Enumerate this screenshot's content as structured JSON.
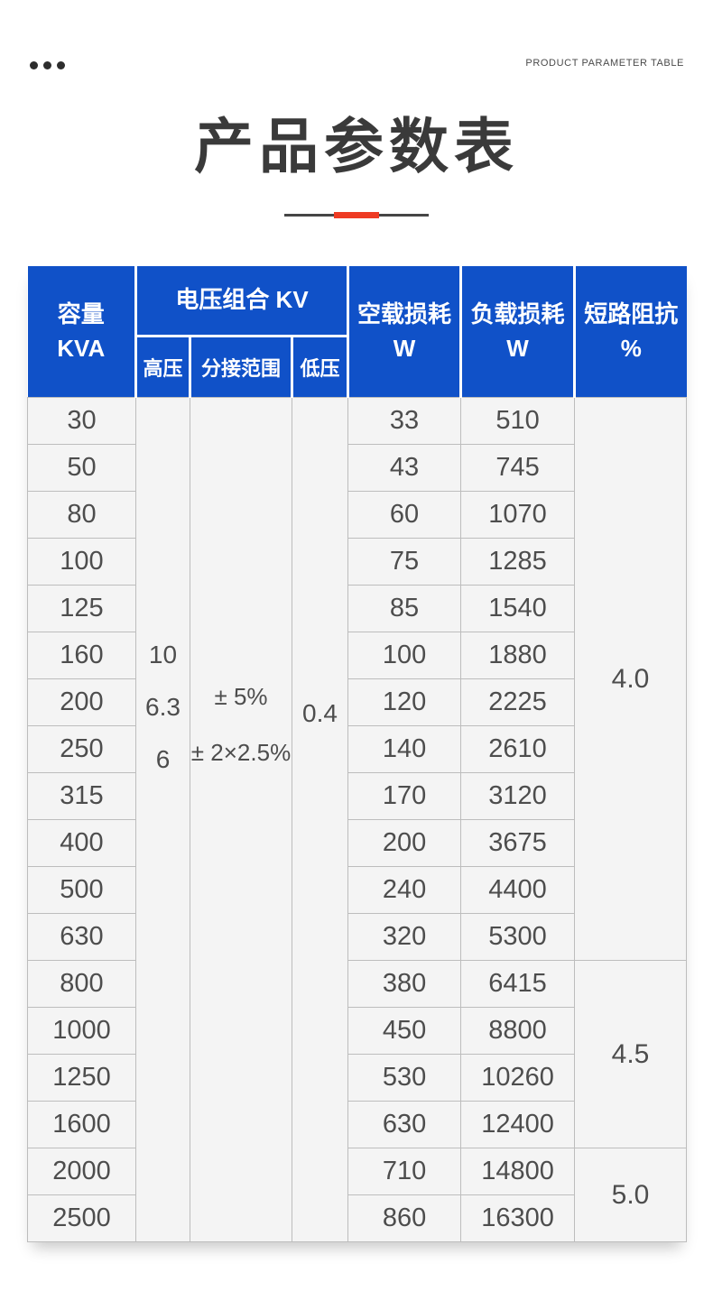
{
  "header": {
    "caption": "PRODUCT PARAMETER TABLE",
    "title": "产品参数表",
    "dots_icon": "three-dots-icon"
  },
  "colors": {
    "header_blue": "#1051c8",
    "accent_red": "#ee3b23",
    "title_gray": "#3a3a3a",
    "cell_bg": "#f4f4f4",
    "cell_border": "#bdbdbd"
  },
  "table": {
    "headers": {
      "capacity_line1": "容量",
      "capacity_line2": "KVA",
      "voltage_combination": "电压组合 KV",
      "high_voltage": "高压",
      "tap_range": "分接范围",
      "low_voltage": "低压",
      "no_load_loss_line1": "空载损耗",
      "no_load_loss_line2": "W",
      "load_loss_line1": "负载损耗",
      "load_loss_line2": "W",
      "impedance_line1": "短路阻抗",
      "impedance_line2": "%"
    },
    "merged": {
      "high_voltage_values": [
        "10",
        "6.3",
        "6"
      ],
      "tap_range_values": [
        "± 5%",
        "± 2×2.5%"
      ],
      "low_voltage_value": "0.4",
      "impedance": [
        {
          "value": "4.0",
          "rows": 12
        },
        {
          "value": "4.5",
          "rows": 4
        },
        {
          "value": "5.0",
          "rows": 2
        }
      ]
    },
    "rows": [
      {
        "kva": "30",
        "no_load": "33",
        "load": "510"
      },
      {
        "kva": "50",
        "no_load": "43",
        "load": "745"
      },
      {
        "kva": "80",
        "no_load": "60",
        "load": "1070"
      },
      {
        "kva": "100",
        "no_load": "75",
        "load": "1285"
      },
      {
        "kva": "125",
        "no_load": "85",
        "load": "1540"
      },
      {
        "kva": "160",
        "no_load": "100",
        "load": "1880"
      },
      {
        "kva": "200",
        "no_load": "120",
        "load": "2225"
      },
      {
        "kva": "250",
        "no_load": "140",
        "load": "2610"
      },
      {
        "kva": "315",
        "no_load": "170",
        "load": "3120"
      },
      {
        "kva": "400",
        "no_load": "200",
        "load": "3675"
      },
      {
        "kva": "500",
        "no_load": "240",
        "load": "4400"
      },
      {
        "kva": "630",
        "no_load": "320",
        "load": "5300"
      },
      {
        "kva": "800",
        "no_load": "380",
        "load": "6415"
      },
      {
        "kva": "1000",
        "no_load": "450",
        "load": "8800"
      },
      {
        "kva": "1250",
        "no_load": "530",
        "load": "10260"
      },
      {
        "kva": "1600",
        "no_load": "630",
        "load": "12400"
      },
      {
        "kva": "2000",
        "no_load": "710",
        "load": "14800"
      },
      {
        "kva": "2500",
        "no_load": "860",
        "load": "16300"
      }
    ]
  }
}
